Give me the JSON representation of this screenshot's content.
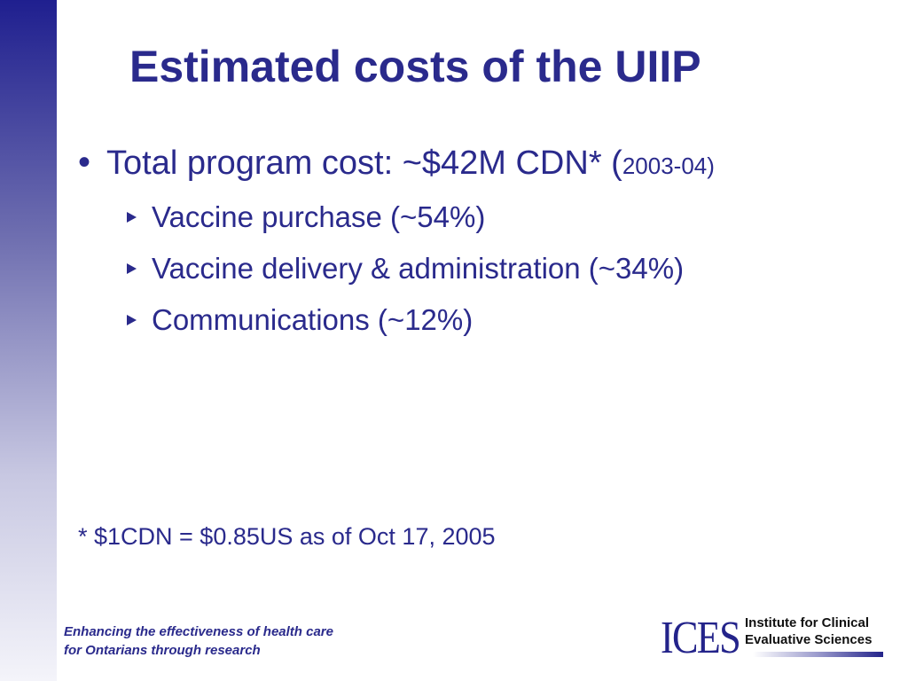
{
  "slide": {
    "title": "Estimated costs of the UIIP",
    "main_bullet": {
      "text": "Total program cost: ~$42M CDN* (",
      "year": "2003-04)"
    },
    "sub_bullets": [
      "Vaccine purchase (~54%)",
      "Vaccine delivery & administration (~34%)",
      "Communications (~12%)"
    ],
    "footnote": "* $1CDN = $0.85US as of Oct 17, 2005"
  },
  "footer": {
    "tagline_line1": "Enhancing the effectiveness of health care",
    "tagline_line2": "for Ontarians through research",
    "logo": {
      "mark": "ICES",
      "line1": "Institute for Clinical",
      "line2": "Evaluative Sciences"
    }
  },
  "colors": {
    "primary": "#2a2a8c",
    "sidebar_top": "#1f1f8f",
    "background": "#ffffff"
  }
}
